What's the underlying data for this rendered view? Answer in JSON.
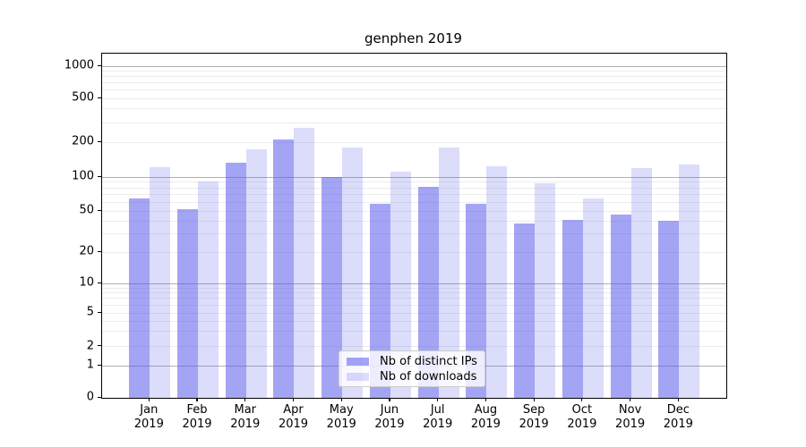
{
  "figure": {
    "background": "#ffffff"
  },
  "chart_data": {
    "type": "bar",
    "title": "genphen 2019",
    "categories": [
      "Jan",
      "Feb",
      "Mar",
      "Apr",
      "May",
      "Jun",
      "Jul",
      "Aug",
      "Sep",
      "Oct",
      "Nov",
      "Dec"
    ],
    "category_year": "2019",
    "series": [
      {
        "name": "Nb of distinct IPs",
        "color": "rgba(90,90,235,0.55)",
        "values": [
          65,
          52,
          134,
          210,
          100,
          58,
          82,
          58,
          38,
          41,
          46,
          40
        ]
      },
      {
        "name": "Nb of downloads",
        "color": "rgba(90,90,235,0.21)",
        "values": [
          122,
          92,
          174,
          268,
          180,
          111,
          180,
          124,
          88,
          65,
          120,
          128
        ]
      }
    ],
    "xlabel": "",
    "ylabel": "",
    "ylim": [
      0,
      1000
    ],
    "yscale": "log-like",
    "ytick_labels": [
      "0",
      "1",
      "2",
      "5",
      "10",
      "20",
      "50",
      "100",
      "200",
      "500",
      "1000"
    ],
    "grid": "horizontal: faint minor lines, gray lines at powers of 10",
    "legend_position": "bottom-center"
  },
  "colors": {
    "bar_distinct_ips": "rgba(90,90,235,0.55)",
    "bar_downloads": "rgba(90,90,235,0.21)",
    "gridline_minor": "#ececec",
    "gridline_major": "#b0b0b0",
    "axis": "#000000"
  }
}
